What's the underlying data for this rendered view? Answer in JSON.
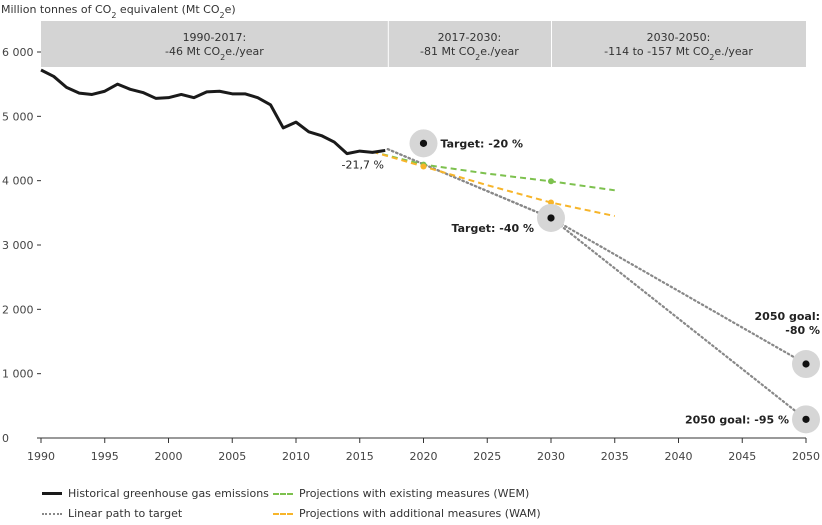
{
  "chart_data": {
    "type": "line",
    "ylabel_prefix": "Million tonnes of CO",
    "ylabel_sub1": "2",
    "ylabel_mid": " equivalent (Mt CO",
    "ylabel_sub2": "2",
    "ylabel_suffix": "e)",
    "xlim": [
      1990,
      2050
    ],
    "ylim": [
      0,
      6000
    ],
    "x_ticks": [
      1990,
      1995,
      2000,
      2005,
      2010,
      2015,
      2020,
      2025,
      2030,
      2035,
      2040,
      2045,
      2050
    ],
    "y_ticks": [
      0,
      1000,
      2000,
      3000,
      4000,
      5000,
      6000
    ],
    "y_tick_labels": [
      "0",
      "1 000",
      "2 000",
      "3 000",
      "4 000",
      "5 000",
      "6 000"
    ],
    "periods": [
      {
        "x_range": [
          1990,
          2017.2
        ],
        "line1": "1990-2017:",
        "line2_pre": "-46 Mt CO",
        "line2_sub": "2",
        "line2_post": "e./year"
      },
      {
        "x_range": [
          2017.2,
          2030
        ],
        "line1": "2017-2030:",
        "line2_pre": "-81 Mt CO",
        "line2_sub": "2",
        "line2_post": "e./year"
      },
      {
        "x_range": [
          2030,
          2050
        ],
        "line1": "2030-2050:",
        "line2_pre": "-114 to -157 Mt CO",
        "line2_sub": "2",
        "line2_post": "e./year"
      }
    ],
    "series": [
      {
        "name": "Historical greenhouse gas emissions",
        "color": "#1a1a1a",
        "style": "solid",
        "x": [
          1990,
          1991,
          1992,
          1993,
          1994,
          1995,
          1996,
          1997,
          1998,
          1999,
          2000,
          2001,
          2002,
          2003,
          2004,
          2005,
          2006,
          2007,
          2008,
          2009,
          2010,
          2011,
          2012,
          2013,
          2014,
          2015,
          2016,
          2017
        ],
        "y": [
          5720,
          5620,
          5450,
          5360,
          5340,
          5390,
          5500,
          5420,
          5370,
          5280,
          5290,
          5340,
          5290,
          5380,
          5390,
          5350,
          5350,
          5290,
          5180,
          4820,
          4910,
          4760,
          4700,
          4600,
          4420,
          4460,
          4440,
          4470
        ]
      },
      {
        "name": "Projections with existing measures (WEM)",
        "color": "#7dc14e",
        "style": "dashed",
        "x": [
          2016,
          2020,
          2025,
          2030,
          2035
        ],
        "y": [
          4450,
          4250,
          4110,
          3990,
          3850
        ],
        "markers_x": [
          2020,
          2030
        ],
        "markers_y": [
          4250,
          3990
        ]
      },
      {
        "name": "Projections with additional measures (WAM)",
        "color": "#f7b52a",
        "style": "dashed",
        "x": [
          2016,
          2020,
          2025,
          2030,
          2035
        ],
        "y": [
          4450,
          4220,
          3930,
          3660,
          3450
        ],
        "markers_x": [
          2020,
          2030
        ],
        "markers_y": [
          4220,
          3660
        ]
      },
      {
        "name": "Linear path to target",
        "color": "#888888",
        "style": "dotted",
        "paths": [
          {
            "x": [
              2017.2,
              2030,
              2050
            ],
            "y": [
              4490,
              3420,
              1150
            ]
          },
          {
            "x": [
              2017.2,
              2030,
              2050
            ],
            "y": [
              4490,
              3420,
              290
            ]
          }
        ]
      }
    ],
    "targets": [
      {
        "x": 2020,
        "y": 4580,
        "label": "Target: -20 %"
      },
      {
        "x": 2030,
        "y": 3420,
        "label": "Target: -40 %"
      },
      {
        "x": 2050,
        "y": 1150,
        "label_line1": "2050 goal:",
        "label_line2": "-80 %"
      },
      {
        "x": 2050,
        "y": 290,
        "label": "2050 goal: -95 %"
      }
    ],
    "annotation": {
      "x": 2015,
      "y": 4420,
      "text": "-21,7 %"
    }
  }
}
